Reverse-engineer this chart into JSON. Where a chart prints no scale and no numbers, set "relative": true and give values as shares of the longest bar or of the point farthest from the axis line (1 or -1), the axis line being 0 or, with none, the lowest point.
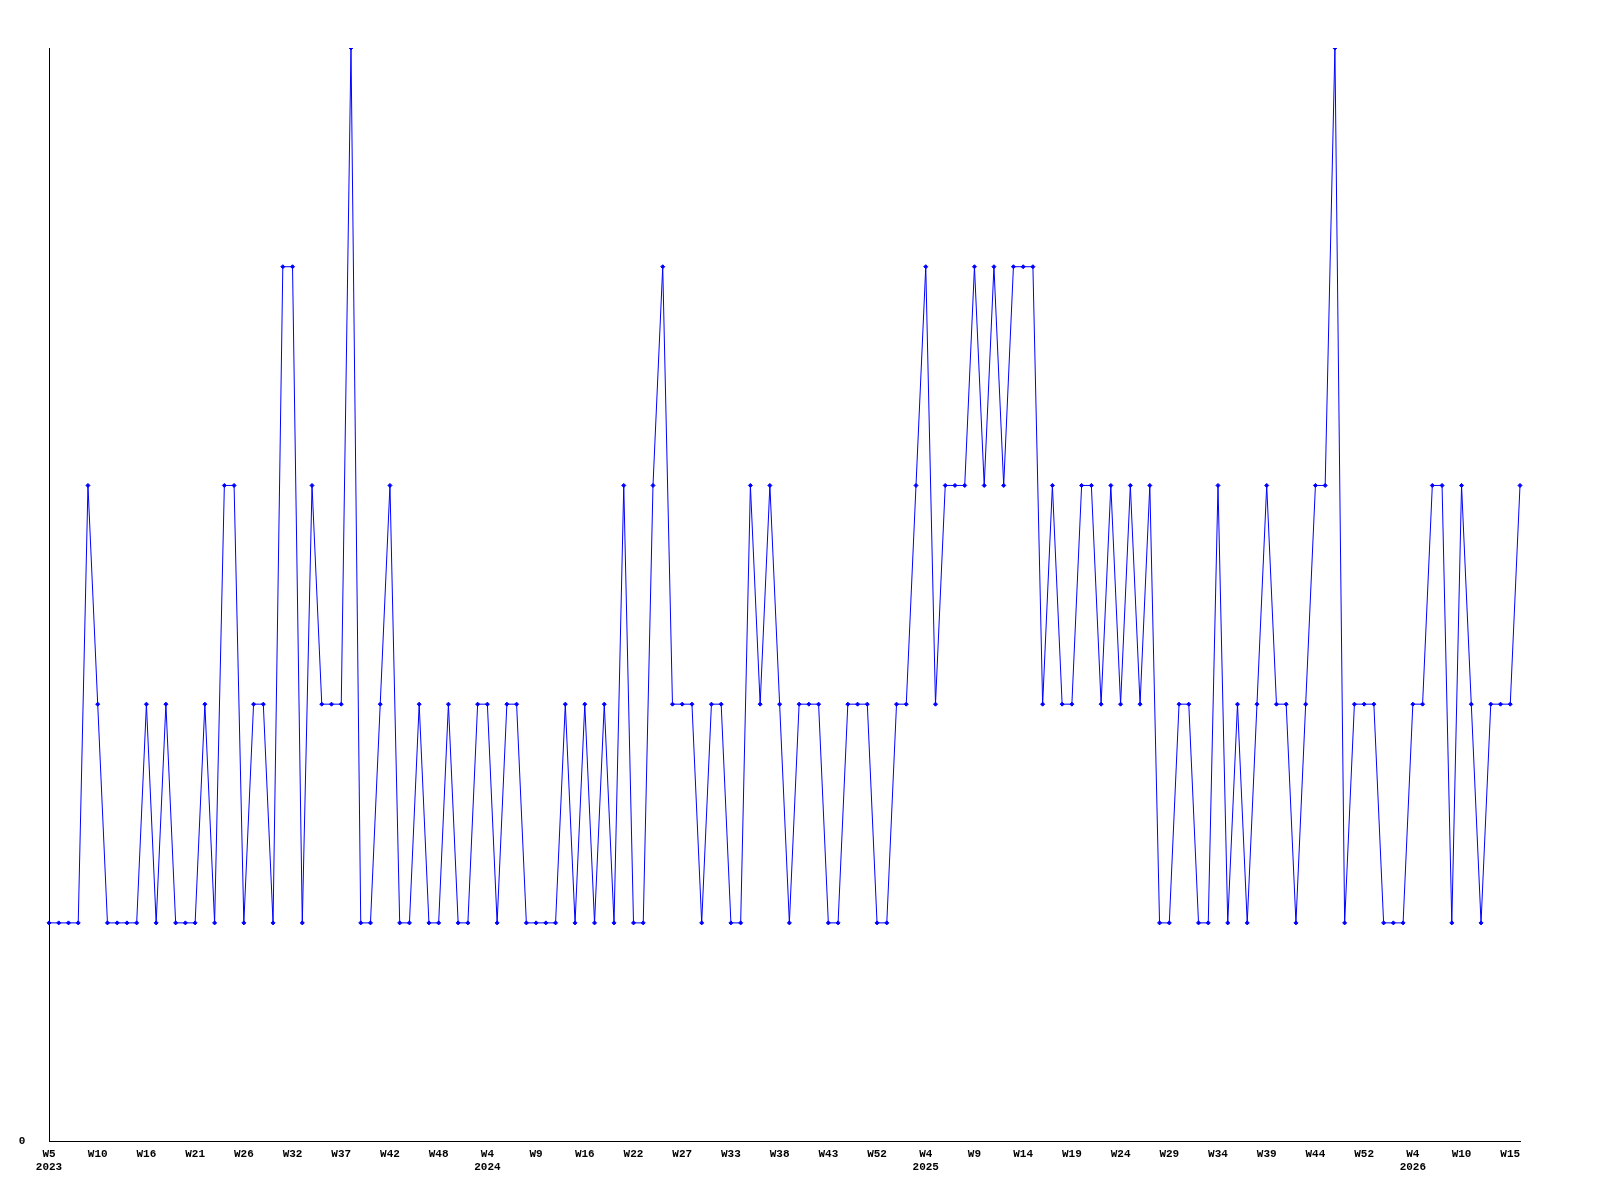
{
  "chart_data": {
    "type": "line",
    "relative": true,
    "color": "#0000ff",
    "marker": "diamond",
    "grid": false,
    "legend": false,
    "annotations": [
      "0"
    ],
    "categories": [
      "W5\n2023",
      null,
      null,
      null,
      null,
      "W10",
      null,
      null,
      null,
      null,
      "W16",
      null,
      null,
      null,
      null,
      "W21",
      null,
      null,
      null,
      null,
      "W26",
      null,
      null,
      null,
      null,
      "W32",
      null,
      null,
      null,
      null,
      "W37",
      null,
      null,
      null,
      null,
      "W42",
      null,
      null,
      null,
      null,
      "W48",
      null,
      null,
      null,
      null,
      "W4\n2024",
      null,
      null,
      null,
      null,
      "W9",
      null,
      null,
      null,
      null,
      "W16",
      null,
      null,
      null,
      null,
      "W22",
      null,
      null,
      null,
      null,
      "W27",
      null,
      null,
      null,
      null,
      "W33",
      null,
      null,
      null,
      null,
      "W38",
      null,
      null,
      null,
      null,
      "W43",
      null,
      null,
      null,
      null,
      "W52",
      null,
      null,
      null,
      null,
      "W4\n2025",
      null,
      null,
      null,
      null,
      "W9",
      null,
      null,
      null,
      null,
      "W14",
      null,
      null,
      null,
      null,
      "W19",
      null,
      null,
      null,
      null,
      "W24",
      null,
      null,
      null,
      null,
      "W29",
      null,
      null,
      null,
      null,
      "W34",
      null,
      null,
      null,
      null,
      "W39",
      null,
      null,
      null,
      null,
      "W44",
      null,
      null,
      null,
      null,
      "W52",
      null,
      null,
      null,
      null,
      "W4\n2026",
      null,
      null,
      null,
      null,
      "W10",
      null,
      null,
      null,
      null,
      "W15",
      null
    ],
    "values": [
      0.2,
      0.2,
      0.2,
      0.2,
      0.6,
      0.4,
      0.2,
      0.2,
      0.2,
      0.2,
      0.4,
      0.2,
      0.4,
      0.2,
      0.2,
      0.2,
      0.4,
      0.2,
      0.6,
      0.6,
      0.2,
      0.4,
      0.4,
      0.2,
      0.8,
      0.8,
      0.2,
      0.6,
      0.4,
      0.4,
      0.4,
      1,
      0.2,
      0.2,
      0.4,
      0.6,
      0.2,
      0.2,
      0.4,
      0.2,
      0.2,
      0.4,
      0.2,
      0.2,
      0.4,
      0.4,
      0.2,
      0.4,
      0.4,
      0.2,
      0.2,
      0.2,
      0.2,
      0.4,
      0.2,
      0.4,
      0.2,
      0.4,
      0.2,
      0.6,
      0.2,
      0.2,
      0.6,
      0.8,
      0.4,
      0.4,
      0.4,
      0.2,
      0.4,
      0.4,
      0.2,
      0.2,
      0.6,
      0.4,
      0.6,
      0.4,
      0.2,
      0.4,
      0.4,
      0.4,
      0.2,
      0.2,
      0.4,
      0.4,
      0.4,
      0.2,
      0.2,
      0.4,
      0.4,
      0.6,
      0.8,
      0.4,
      0.6,
      0.6,
      0.6,
      0.8,
      0.6,
      0.8,
      0.6,
      0.8,
      0.8,
      0.8,
      0.4,
      0.6,
      0.4,
      0.4,
      0.6,
      0.6,
      0.4,
      0.6,
      0.4,
      0.6,
      0.4,
      0.6,
      0.2,
      0.2,
      0.4,
      0.4,
      0.2,
      0.2,
      0.6,
      0.2,
      0.4,
      0.2,
      0.4,
      0.6,
      0.4,
      0.4,
      0.2,
      0.4,
      0.6,
      0.6,
      1,
      0.2,
      0.4,
      0.4,
      0.4,
      0.2,
      0.2,
      0.2,
      0.4,
      0.4,
      0.6,
      0.6,
      0.2,
      0.6,
      0.4,
      0.2,
      0.4,
      0.4,
      0.4,
      0.6
    ]
  }
}
